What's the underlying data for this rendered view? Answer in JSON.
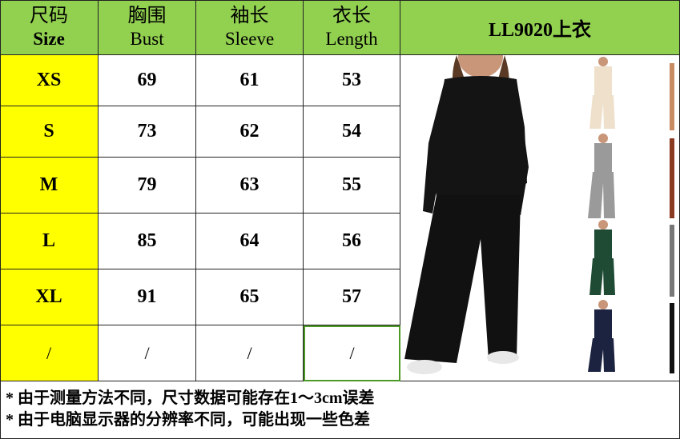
{
  "header": {
    "columns": [
      {
        "cn": "尺码",
        "en": "Size"
      },
      {
        "cn": "胸围",
        "en": "Bust"
      },
      {
        "cn": "袖长",
        "en": "Sleeve"
      },
      {
        "cn": "衣长",
        "en": "Length"
      }
    ],
    "product": "LL9020上衣"
  },
  "rows": [
    {
      "size": "XS",
      "bust": "69",
      "sleeve": "61",
      "length": "53"
    },
    {
      "size": "S",
      "bust": "73",
      "sleeve": "62",
      "length": "54"
    },
    {
      "size": "M",
      "bust": "79",
      "sleeve": "63",
      "length": "55"
    },
    {
      "size": "L",
      "bust": "85",
      "sleeve": "64",
      "length": "56"
    },
    {
      "size": "XL",
      "bust": "91",
      "sleeve": "65",
      "length": "57"
    },
    {
      "size": "/",
      "bust": "/",
      "sleeve": "/",
      "length": "/"
    }
  ],
  "notes": [
    "* 由于测量方法不同，尺寸数据可能存在1～3cm误差",
    "* 由于电脑显示器的分辨率不同，可能出现一些色差"
  ],
  "colors": {
    "header": "#92d050",
    "size_column": "#ffff00",
    "selected_cell_border": "#4e9a26",
    "product_colors": [
      "#111111",
      "#efe0cc",
      "#9a9a9a",
      "#1f4a33",
      "#1c2340"
    ]
  }
}
